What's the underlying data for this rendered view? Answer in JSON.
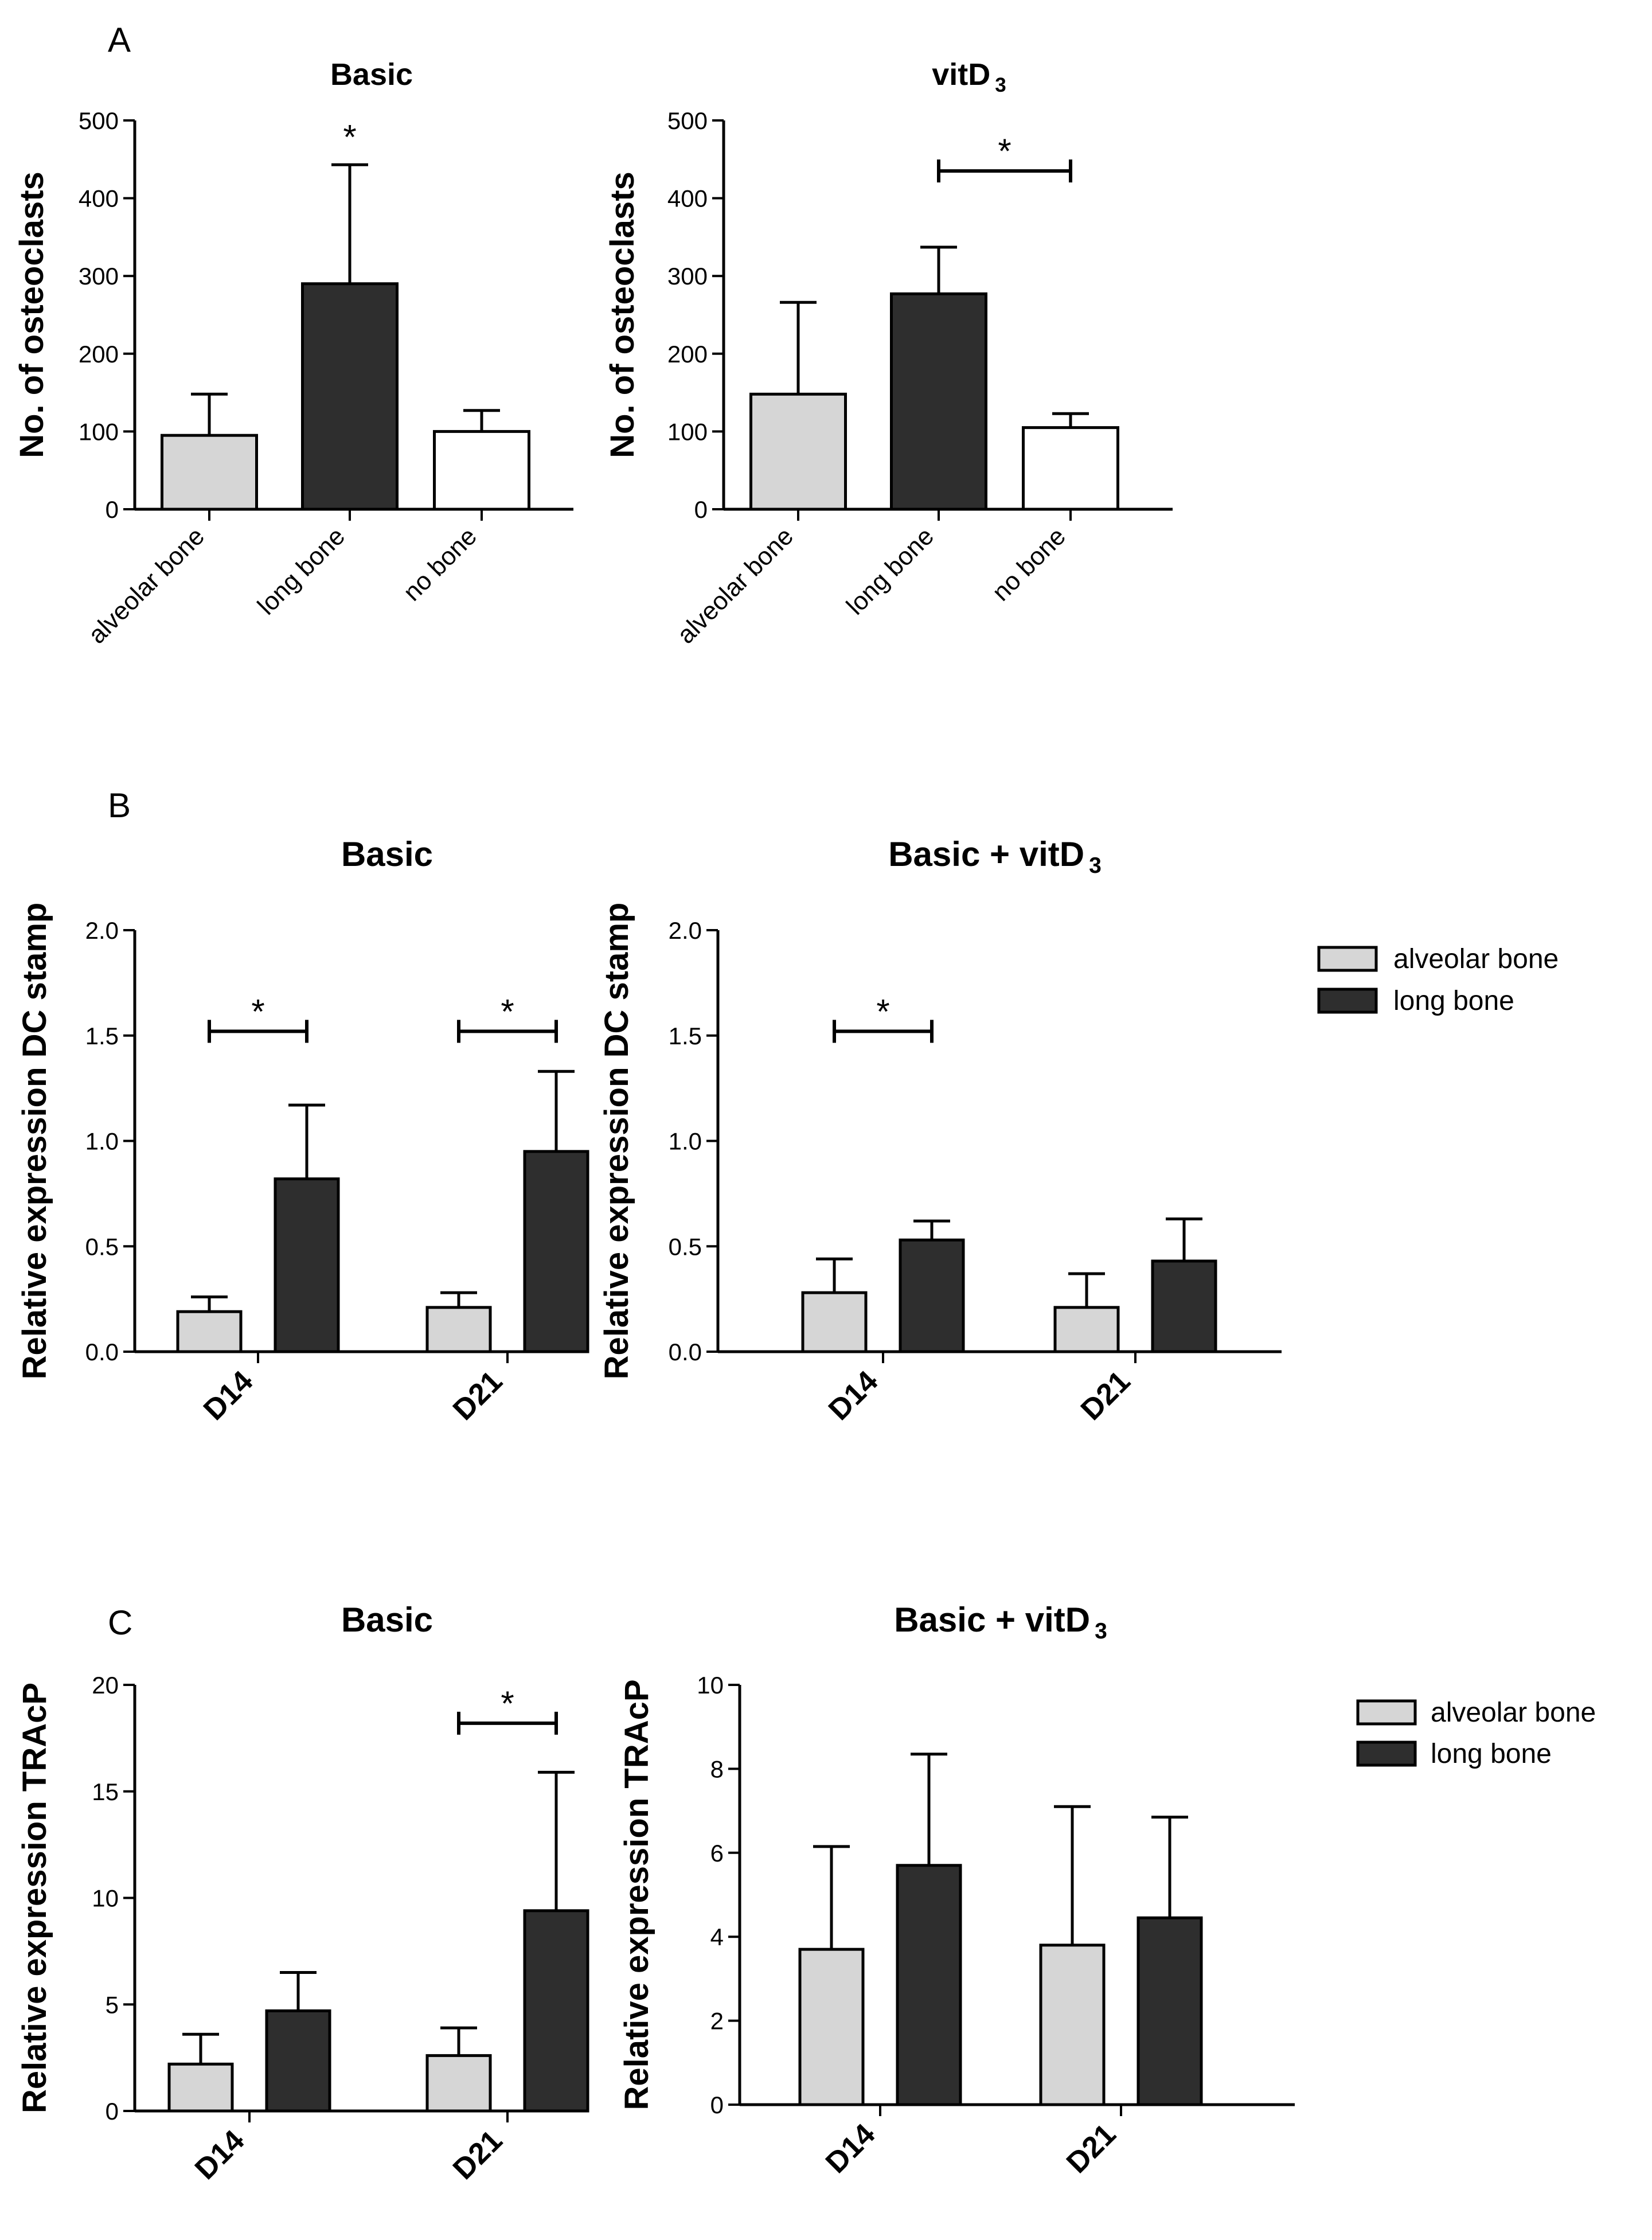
{
  "colors": {
    "alveolar": "#d6d6d6",
    "long": "#2e2e2e",
    "nobone": "#ffffff",
    "stroke": "#000000"
  },
  "panels": [
    {
      "letter": "A"
    },
    {
      "letter": "B"
    },
    {
      "letter": "C"
    }
  ],
  "legends": [
    {
      "items": [
        {
          "label": "alveolar bone",
          "color": "#d6d6d6"
        },
        {
          "label": "long bone",
          "color": "#2e2e2e"
        }
      ]
    },
    {
      "items": [
        {
          "label": "alveolar bone",
          "color": "#d6d6d6"
        },
        {
          "label": "long bone",
          "color": "#2e2e2e"
        }
      ]
    }
  ],
  "chart_data": [
    {
      "id": "A-basic",
      "type": "bar",
      "title": "Basic",
      "title_sub": "",
      "ylabel": "No. of osteoclasts",
      "ylim": [
        0,
        500
      ],
      "yticks": [
        "0",
        "100",
        "200",
        "300",
        "400",
        "500"
      ],
      "categories": [
        "alveolar bone",
        "long bone",
        "no bone"
      ],
      "series": [
        {
          "name": "group",
          "values": [
            95,
            290,
            100
          ],
          "errors": [
            53,
            153,
            27
          ],
          "colors": [
            "#d6d6d6",
            "#2e2e2e",
            "#ffffff"
          ]
        }
      ],
      "annotations": [
        {
          "text": "*",
          "kind": "star",
          "category": 1
        }
      ]
    },
    {
      "id": "A-vitd3",
      "type": "bar",
      "title": "vitD",
      "title_sub": "3",
      "ylabel": "No. of osteoclasts",
      "ylim": [
        0,
        500
      ],
      "yticks": [
        "0",
        "100",
        "200",
        "300",
        "400",
        "500"
      ],
      "categories": [
        "alveolar bone",
        "long bone",
        "no bone"
      ],
      "series": [
        {
          "name": "group",
          "values": [
            148,
            277,
            105
          ],
          "errors": [
            118,
            60,
            18
          ],
          "colors": [
            "#d6d6d6",
            "#2e2e2e",
            "#ffffff"
          ]
        }
      ],
      "annotations": [
        {
          "text": "*",
          "kind": "bracket",
          "from": 1,
          "to": 2,
          "y": 435
        }
      ]
    },
    {
      "id": "B-basic",
      "type": "bar",
      "title": "Basic",
      "title_sub": "",
      "ylabel": "Relative expression DC stamp",
      "ylim": [
        0,
        2.0
      ],
      "yticks": [
        "0.0",
        "0.5",
        "1.0",
        "1.5",
        "2.0"
      ],
      "categories": [
        "D14",
        "D21"
      ],
      "series": [
        {
          "name": "alveolar bone",
          "values": [
            0.19,
            0.21
          ],
          "errors": [
            0.07,
            0.07
          ]
        },
        {
          "name": "long bone",
          "values": [
            0.82,
            0.95
          ],
          "errors": [
            0.35,
            0.38
          ]
        }
      ],
      "annotations": [
        {
          "text": "*",
          "kind": "bracket",
          "category": 0,
          "y": 1.52
        },
        {
          "text": "*",
          "kind": "bracket",
          "category": 1,
          "y": 1.52
        }
      ]
    },
    {
      "id": "B-vitd3",
      "type": "bar",
      "title": "Basic + vitD",
      "title_sub": "3",
      "ylabel": "Relative expression DC stamp",
      "ylim": [
        0,
        2.0
      ],
      "yticks": [
        "0.0",
        "0.5",
        "1.0",
        "1.5",
        "2.0"
      ],
      "categories": [
        "D14",
        "D21"
      ],
      "series": [
        {
          "name": "alveolar bone",
          "values": [
            0.28,
            0.21
          ],
          "errors": [
            0.16,
            0.16
          ]
        },
        {
          "name": "long bone",
          "values": [
            0.53,
            0.43
          ],
          "errors": [
            0.09,
            0.2
          ]
        }
      ],
      "annotations": [
        {
          "text": "*",
          "kind": "bracket",
          "category": 0,
          "y": 1.52
        }
      ]
    },
    {
      "id": "C-basic",
      "type": "bar",
      "title": "Basic",
      "title_sub": "",
      "ylabel": "Relative expression TRAcP",
      "ylim": [
        0,
        20
      ],
      "yticks": [
        "0",
        "5",
        "10",
        "15",
        "20"
      ],
      "categories": [
        "D14",
        "D21"
      ],
      "series": [
        {
          "name": "alveolar bone",
          "values": [
            2.2,
            2.6
          ],
          "errors": [
            1.4,
            1.3
          ]
        },
        {
          "name": "long bone",
          "values": [
            4.7,
            9.4
          ],
          "errors": [
            1.8,
            6.5
          ]
        }
      ],
      "annotations": [
        {
          "text": "*",
          "kind": "bracket",
          "category": 1,
          "y": 18.2
        }
      ]
    },
    {
      "id": "C-vitd3",
      "type": "bar",
      "title": "Basic + vitD",
      "title_sub": "3",
      "ylabel": "Relative expression TRAcP",
      "ylim": [
        0,
        10
      ],
      "yticks": [
        "0",
        "2",
        "4",
        "6",
        "8",
        "10"
      ],
      "categories": [
        "D14",
        "D21"
      ],
      "series": [
        {
          "name": "alveolar bone",
          "values": [
            3.7,
            3.8
          ],
          "errors": [
            2.45,
            3.3
          ]
        },
        {
          "name": "long bone",
          "values": [
            5.7,
            4.45
          ],
          "errors": [
            2.65,
            2.4
          ]
        }
      ],
      "annotations": []
    }
  ]
}
